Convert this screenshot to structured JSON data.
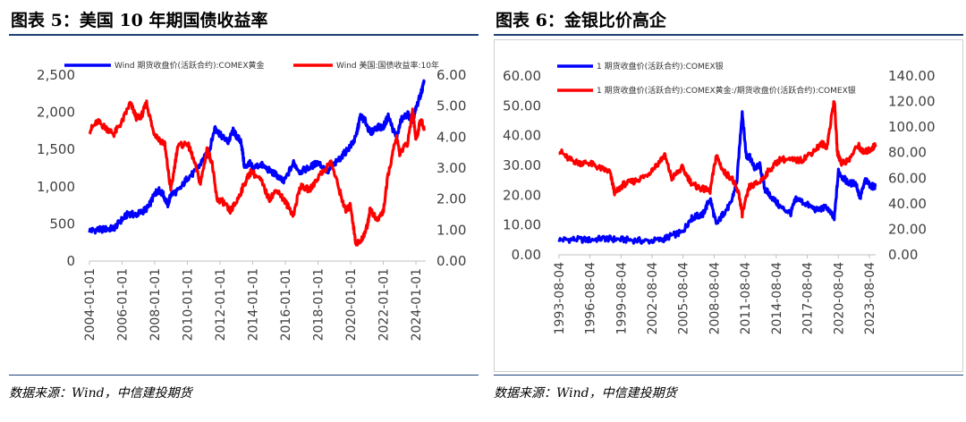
{
  "left": {
    "title": "图表 5：美国 10 年期国债收益率",
    "source": "数据来源：Wind，中信建投期货",
    "chart_data": {
      "type": "line",
      "title": "图表 5：美国 10 年期国债收益率",
      "x_ticks": [
        "2004-01-01",
        "2006-01-01",
        "2008-01-01",
        "2010-01-01",
        "2012-01-01",
        "2014-01-01",
        "2016-01-01",
        "2018-01-01",
        "2020-01-01",
        "2022-01-01",
        "2024-01-01"
      ],
      "x_range": [
        2004.0,
        2024.6
      ],
      "y_left": {
        "ticks": [
          "0",
          "500",
          "1,000",
          "1,500",
          "2,000",
          "2,500"
        ],
        "range": [
          0,
          2500
        ]
      },
      "y_right": {
        "ticks": [
          "0.00",
          "1.00",
          "2.00",
          "3.00",
          "4.00",
          "5.00",
          "6.00"
        ],
        "range": [
          0,
          6
        ]
      },
      "legend_position": "top",
      "grid": false,
      "series": [
        {
          "name": "Wind 期货收盘价(活跃合约):COMEX黄金",
          "color": "#0000ff",
          "axis": "left",
          "x": [
            2004.0,
            2004.5,
            2005.0,
            2005.5,
            2006.0,
            2006.4,
            2006.8,
            2007.2,
            2007.6,
            2008.0,
            2008.2,
            2008.5,
            2008.8,
            2009.0,
            2009.5,
            2010.0,
            2010.5,
            2011.0,
            2011.3,
            2011.7,
            2012.0,
            2012.5,
            2012.8,
            2013.0,
            2013.3,
            2013.5,
            2013.8,
            2014.0,
            2014.5,
            2015.0,
            2015.5,
            2015.9,
            2016.5,
            2016.9,
            2017.5,
            2018.0,
            2018.6,
            2019.0,
            2019.5,
            2020.0,
            2020.3,
            2020.6,
            2020.9,
            2021.2,
            2021.6,
            2022.0,
            2022.3,
            2022.8,
            2023.1,
            2023.5,
            2023.8,
            2024.0,
            2024.3,
            2024.5
          ],
          "y": [
            410,
            420,
            430,
            440,
            560,
            640,
            620,
            660,
            720,
            900,
            960,
            900,
            760,
            900,
            950,
            1120,
            1200,
            1380,
            1450,
            1800,
            1700,
            1600,
            1750,
            1680,
            1600,
            1250,
            1320,
            1250,
            1300,
            1220,
            1150,
            1060,
            1320,
            1200,
            1260,
            1330,
            1200,
            1300,
            1420,
            1550,
            1650,
            1950,
            1880,
            1720,
            1800,
            1800,
            1950,
            1650,
            1900,
            1980,
            1850,
            2050,
            2250,
            2400
          ]
        },
        {
          "name": "Wind 美国:国债收益率:10年",
          "color": "#ff0000",
          "axis": "right",
          "x": [
            2004.0,
            2004.5,
            2005.0,
            2005.5,
            2006.0,
            2006.5,
            2006.9,
            2007.2,
            2007.5,
            2007.9,
            2008.3,
            2008.6,
            2008.9,
            2009.0,
            2009.4,
            2010.0,
            2010.3,
            2010.8,
            2011.2,
            2011.5,
            2011.8,
            2012.2,
            2012.6,
            2013.0,
            2013.5,
            2013.9,
            2014.5,
            2015.0,
            2015.5,
            2016.0,
            2016.5,
            2016.9,
            2017.5,
            2018.0,
            2018.8,
            2019.3,
            2019.7,
            2020.0,
            2020.3,
            2020.6,
            2021.0,
            2021.2,
            2021.6,
            2022.0,
            2022.3,
            2022.8,
            2023.0,
            2023.5,
            2023.8,
            2024.0,
            2024.3,
            2024.5
          ],
          "y": [
            4.2,
            4.5,
            4.3,
            4.1,
            4.5,
            5.1,
            4.6,
            4.7,
            5.1,
            4.2,
            3.9,
            3.8,
            2.6,
            2.3,
            3.7,
            3.8,
            3.4,
            2.5,
            3.6,
            3.2,
            2.0,
            1.9,
            1.6,
            1.9,
            2.5,
            2.9,
            2.6,
            2.0,
            2.3,
            1.9,
            1.5,
            2.4,
            2.3,
            2.7,
            3.2,
            2.3,
            1.6,
            1.8,
            0.6,
            0.6,
            1.1,
            1.7,
            1.3,
            1.6,
            2.8,
            4.0,
            3.5,
            3.8,
            4.9,
            3.9,
            4.6,
            4.2
          ]
        }
      ]
    }
  },
  "right": {
    "title": "图表 6：金银比价高企",
    "source": "数据来源：Wind，中信建投期货",
    "chart_data": {
      "type": "line",
      "title": "图表 6：金银比价高企",
      "x_ticks": [
        "1993-08-04",
        "1996-08-04",
        "1999-08-04",
        "2002-08-04",
        "2005-08-04",
        "2008-08-04",
        "2011-08-04",
        "2014-08-04",
        "2017-08-04",
        "2020-08-04",
        "2023-08-04"
      ],
      "x_range": [
        1993.6,
        2024.2
      ],
      "y_left": {
        "ticks": [
          "0.00",
          "10.00",
          "20.00",
          "30.00",
          "40.00",
          "50.00",
          "60.00"
        ],
        "range": [
          0,
          60
        ]
      },
      "y_right": {
        "ticks": [
          "0.00",
          "20.00",
          "40.00",
          "60.00",
          "80.00",
          "100.00",
          "120.00",
          "140.00"
        ],
        "range": [
          0,
          140
        ]
      },
      "legend_position": "top",
      "grid": false,
      "series": [
        {
          "name": "1 期货收盘价(活跃合约):COMEX银",
          "color": "#0000ff",
          "axis": "left",
          "x": [
            1993.6,
            1995.0,
            1996.5,
            1998.0,
            1999.0,
            2000.5,
            2002.0,
            2003.5,
            2004.5,
            2005.5,
            2006.3,
            2006.9,
            2007.5,
            2008.2,
            2008.8,
            2009.5,
            2010.2,
            2010.8,
            2011.3,
            2011.7,
            2012.0,
            2012.5,
            2013.0,
            2013.5,
            2014.0,
            2015.0,
            2016.0,
            2016.5,
            2017.5,
            2018.5,
            2019.5,
            2020.2,
            2020.6,
            2021.0,
            2021.6,
            2022.3,
            2022.7,
            2023.2,
            2023.8,
            2024.2
          ],
          "y": [
            5,
            5.2,
            5,
            5.5,
            5.2,
            5,
            4.6,
            5,
            6.5,
            7.5,
            12,
            13,
            13.5,
            19,
            10,
            14,
            17,
            25,
            48,
            33,
            33,
            29,
            30,
            22,
            20,
            16,
            14,
            19,
            17,
            15,
            16,
            12,
            28,
            26,
            24,
            24,
            19,
            25,
            23,
            23
          ]
        },
        {
          "name": "1 期货收盘价(活跃合约):COMEX黄金:/期货收盘价(活跃合约):COMEX银",
          "color": "#ff0000",
          "axis": "right",
          "x": [
            1993.6,
            1994.5,
            1995.5,
            1996.5,
            1997.5,
            1998.5,
            1999.0,
            1999.8,
            2001.0,
            2002.0,
            2003.0,
            2003.8,
            2004.5,
            2005.5,
            2006.5,
            2007.3,
            2008.2,
            2008.8,
            2009.5,
            2010.3,
            2011.0,
            2011.3,
            2012.0,
            2013.0,
            2014.0,
            2015.0,
            2016.0,
            2017.0,
            2018.0,
            2019.0,
            2019.5,
            2020.2,
            2020.5,
            2020.9,
            2021.6,
            2022.5,
            2023.0,
            2023.6,
            2024.2
          ],
          "y": [
            82,
            75,
            72,
            72,
            68,
            65,
            48,
            55,
            58,
            62,
            70,
            78,
            60,
            68,
            55,
            52,
            50,
            78,
            65,
            60,
            47,
            32,
            53,
            57,
            67,
            75,
            74,
            74,
            80,
            87,
            85,
            122,
            80,
            72,
            74,
            86,
            80,
            82,
            86
          ]
        }
      ]
    }
  }
}
